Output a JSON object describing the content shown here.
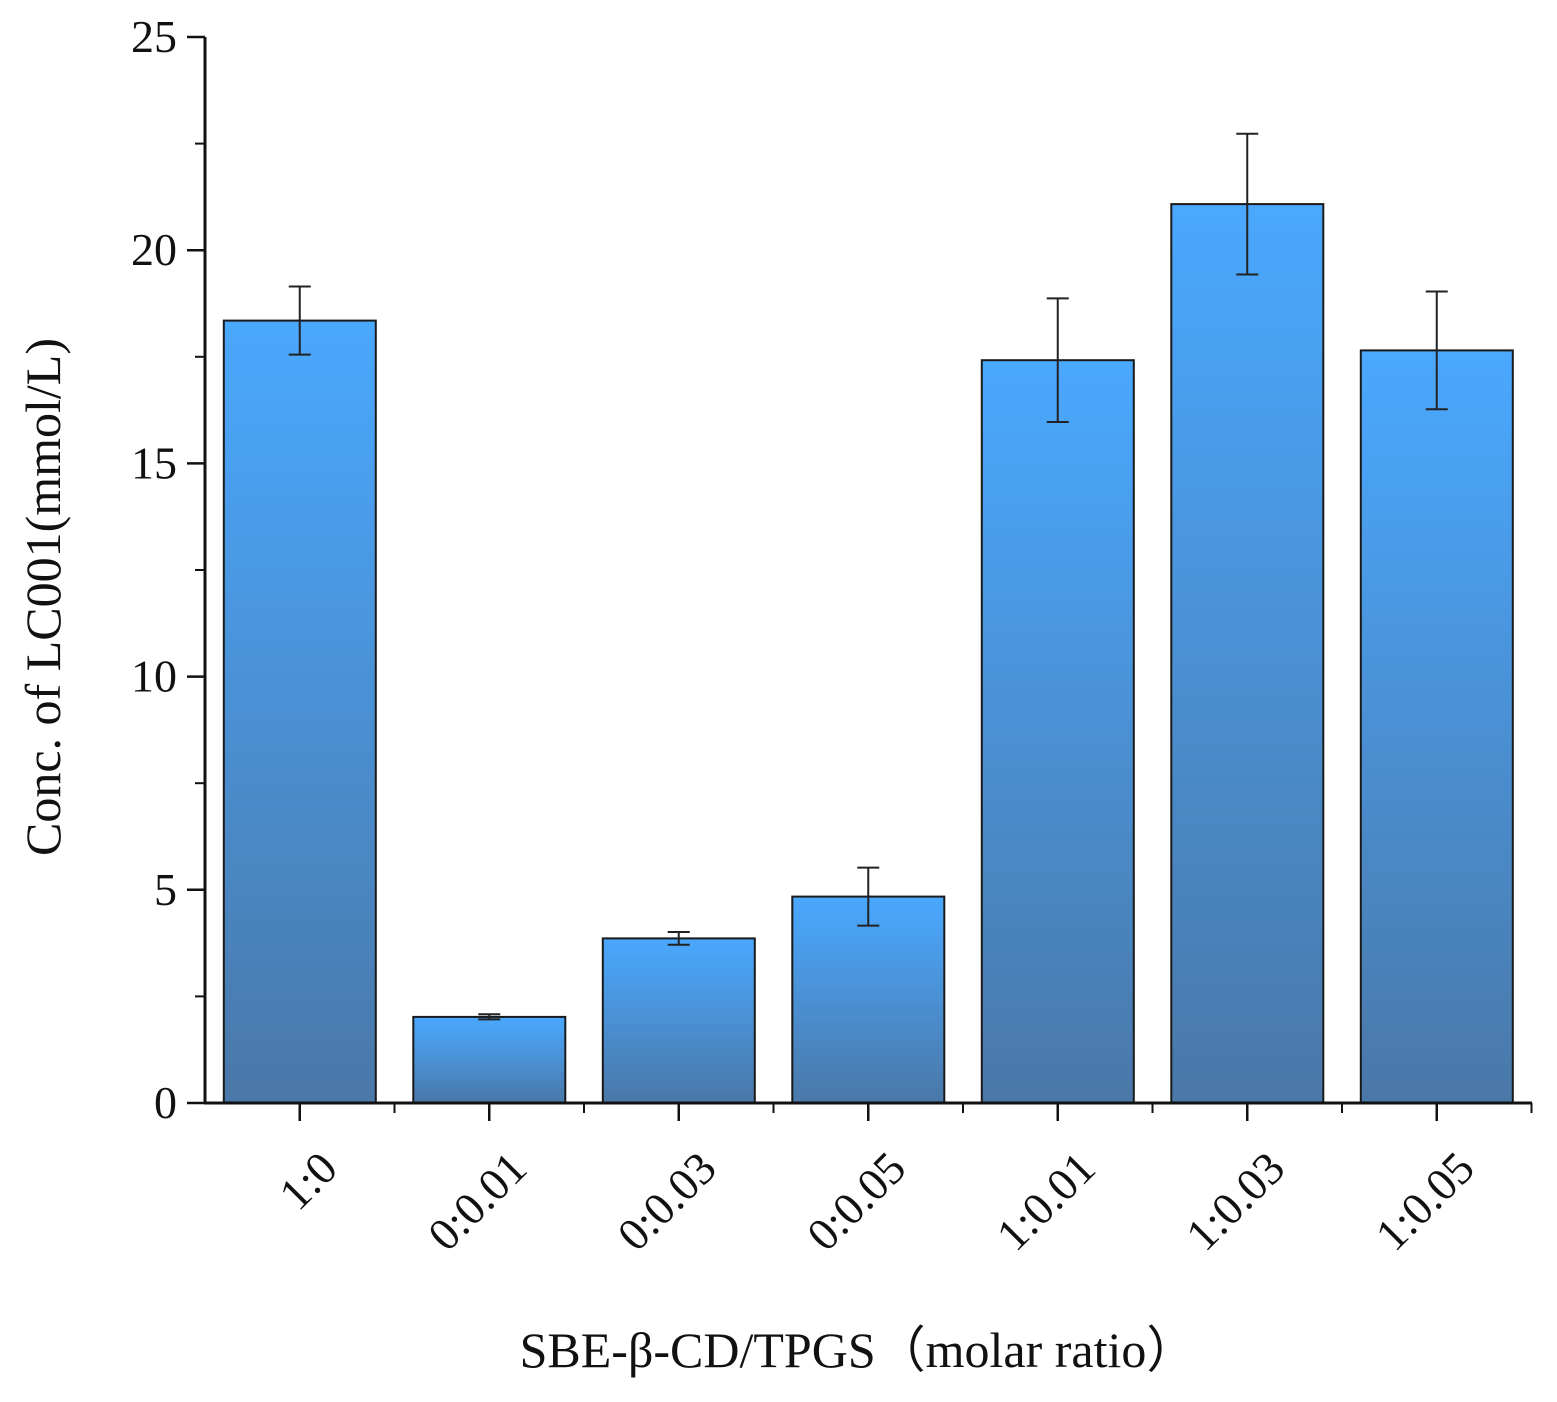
{
  "chart_data": {
    "type": "bar",
    "title": "",
    "xlabel": "SBE-β-CD/TPGS（molar ratio）",
    "ylabel": "Conc. of LC001(mmol/L)",
    "categories": [
      "1:0",
      "0:0.01",
      "0:0.03",
      "0:0.05",
      "1:0.01",
      "1:0.03",
      "1:0.05"
    ],
    "values": [
      18.35,
      2.02,
      3.86,
      4.84,
      17.42,
      21.08,
      17.65
    ],
    "errors": [
      0.8,
      0.06,
      0.15,
      0.68,
      1.45,
      1.65,
      1.38
    ],
    "ylim": [
      0,
      25
    ],
    "yticks": [
      0,
      5,
      10,
      15,
      20,
      25
    ],
    "yticks_labels": [
      "0",
      "5",
      "10",
      "15",
      "20",
      "25"
    ],
    "grid": false,
    "legend": "none",
    "colors": {
      "bar_top": "#4aa8ff",
      "bar_bottom": "#4a78a8",
      "bar_edge": "#1a1a1a",
      "axis": "#111111",
      "error_bar": "#222222"
    }
  }
}
